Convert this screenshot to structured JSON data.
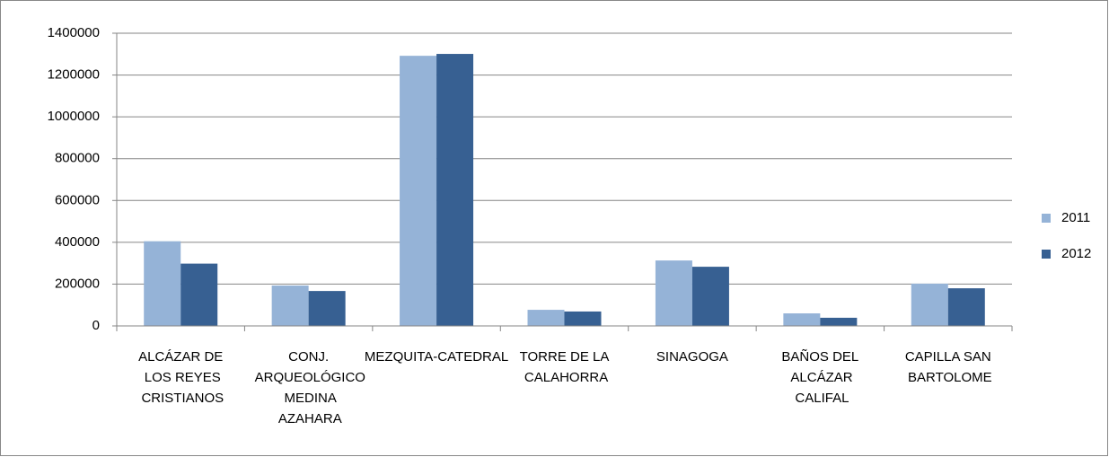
{
  "chart_data": {
    "type": "bar",
    "categories": [
      "ALCÁZAR DE LOS REYES CRISTIANOS",
      "CONJ. ARQUEOLÓGICO MEDINA AZAHARA",
      "MEZQUITA-CATEDRAL",
      "TORRE DE LA CALAHORRA",
      "SINAGOGA",
      "BAÑOS DEL ALCÁZAR CALIFAL",
      "CAPILLA SAN BARTOLOME"
    ],
    "series": [
      {
        "name": "2011",
        "color": "#95b3d7",
        "values": [
          405000,
          193000,
          1292000,
          77000,
          313000,
          60000,
          202000
        ]
      },
      {
        "name": "2012",
        "color": "#376092",
        "values": [
          298000,
          167000,
          1301000,
          69000,
          283000,
          39000,
          180000
        ]
      }
    ],
    "ylim": [
      0,
      1400000
    ],
    "yticks": [
      0,
      200000,
      400000,
      600000,
      800000,
      1000000,
      1200000,
      1400000
    ],
    "grid": true,
    "legend": "right"
  }
}
